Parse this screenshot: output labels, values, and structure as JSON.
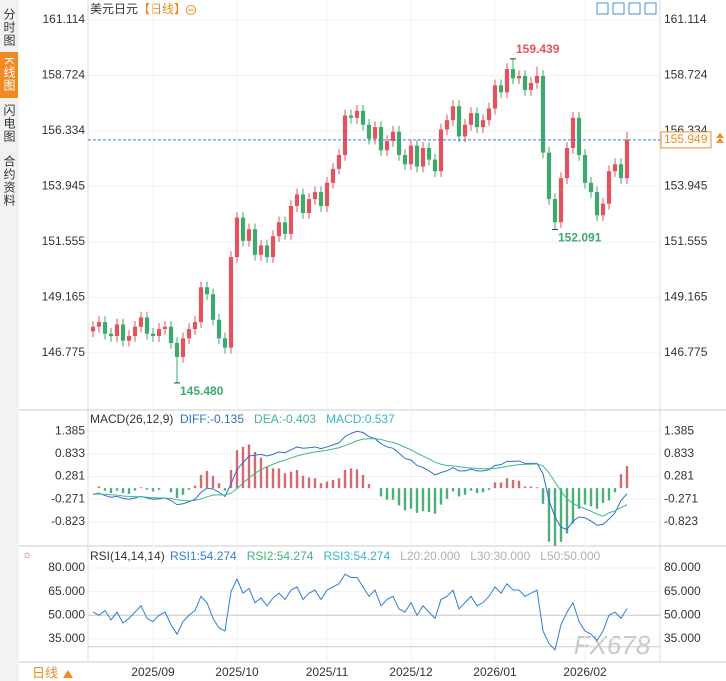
{
  "sidebar": [
    "分时图",
    "K线图",
    "闪电图",
    "合约资料"
  ],
  "footer": "日线",
  "watermark": "FX678",
  "chart_data": [
    {
      "type": "candlestick",
      "title": "美元日元",
      "subtitle": "【日线】",
      "up_color": "#e2535f",
      "down_color": "#3daa6d",
      "ylim": [
        144.4,
        161.63
      ],
      "yticks": [
        161.114,
        158.724,
        156.334,
        153.945,
        151.555,
        149.165,
        146.775
      ],
      "grid": true,
      "last_price": 155.949,
      "annotations": [
        {
          "value": 159.439,
          "side": "high"
        },
        {
          "value": 152.091,
          "side": "low"
        },
        {
          "value": 145.48,
          "label": "145.480",
          "side": "low"
        }
      ],
      "candles": [
        [
          147.7,
          148.15,
          147.45,
          147.9
        ],
        [
          147.9,
          148.35,
          147.65,
          148.1
        ],
        [
          148.1,
          148.35,
          147.35,
          147.6
        ],
        [
          147.6,
          147.85,
          147.25,
          147.5
        ],
        [
          147.5,
          148.25,
          147.25,
          148.0
        ],
        [
          148.0,
          148.25,
          147.05,
          147.3
        ],
        [
          147.3,
          147.75,
          147.05,
          147.5
        ],
        [
          147.5,
          148.15,
          147.25,
          147.9
        ],
        [
          147.9,
          148.55,
          147.65,
          148.3
        ],
        [
          148.3,
          148.55,
          147.35,
          147.6
        ],
        [
          147.6,
          147.85,
          147.25,
          147.5
        ],
        [
          147.5,
          148.05,
          147.25,
          147.8
        ],
        [
          147.8,
          148.15,
          147.55,
          147.9
        ],
        [
          147.9,
          148.15,
          146.95,
          147.2
        ],
        [
          147.2,
          147.45,
          145.48,
          146.6
        ],
        [
          146.6,
          147.65,
          146.35,
          147.4
        ],
        [
          147.4,
          148.05,
          147.15,
          147.8
        ],
        [
          147.8,
          148.35,
          147.55,
          148.1
        ],
        [
          148.1,
          149.85,
          147.85,
          149.6
        ],
        [
          149.6,
          149.85,
          149.05,
          149.3
        ],
        [
          149.3,
          149.55,
          147.95,
          148.2
        ],
        [
          148.2,
          148.45,
          147.15,
          147.4
        ],
        [
          147.4,
          147.65,
          146.75,
          147.0
        ],
        [
          147.0,
          151.15,
          146.75,
          150.9
        ],
        [
          150.9,
          152.85,
          150.65,
          152.6
        ],
        [
          152.6,
          152.85,
          151.35,
          151.6
        ],
        [
          151.6,
          152.35,
          151.35,
          152.1
        ],
        [
          152.1,
          152.35,
          150.75,
          151.0
        ],
        [
          151.0,
          151.65,
          150.75,
          151.4
        ],
        [
          151.4,
          151.65,
          150.65,
          150.9
        ],
        [
          150.9,
          152.05,
          150.65,
          151.8
        ],
        [
          151.8,
          152.65,
          151.55,
          152.4
        ],
        [
          152.4,
          152.65,
          151.65,
          151.9
        ],
        [
          151.9,
          153.35,
          151.65,
          153.1
        ],
        [
          153.1,
          153.85,
          152.85,
          153.6
        ],
        [
          153.6,
          153.85,
          152.55,
          152.8
        ],
        [
          152.8,
          153.65,
          152.55,
          153.4
        ],
        [
          153.4,
          153.95,
          153.15,
          153.7
        ],
        [
          153.7,
          153.95,
          152.85,
          153.1
        ],
        [
          153.1,
          154.35,
          152.85,
          154.1
        ],
        [
          154.1,
          154.95,
          153.85,
          154.7
        ],
        [
          154.7,
          155.55,
          154.45,
          155.3
        ],
        [
          155.3,
          157.25,
          155.05,
          157.0
        ],
        [
          157.0,
          157.25,
          156.65,
          156.9
        ],
        [
          156.9,
          157.45,
          156.65,
          157.2
        ],
        [
          157.2,
          157.45,
          156.35,
          156.6
        ],
        [
          156.6,
          156.85,
          155.75,
          156.0
        ],
        [
          156.0,
          156.75,
          155.75,
          156.5
        ],
        [
          156.5,
          156.75,
          155.25,
          155.5
        ],
        [
          155.5,
          156.15,
          155.25,
          155.9
        ],
        [
          155.9,
          156.55,
          155.65,
          156.3
        ],
        [
          156.3,
          156.55,
          155.05,
          155.3
        ],
        [
          155.3,
          155.55,
          154.65,
          154.9
        ],
        [
          154.9,
          155.95,
          154.65,
          155.7
        ],
        [
          155.7,
          155.95,
          154.55,
          154.8
        ],
        [
          154.8,
          155.85,
          154.55,
          155.6
        ],
        [
          155.6,
          155.85,
          154.85,
          155.1
        ],
        [
          155.1,
          155.35,
          154.35,
          154.6
        ],
        [
          154.6,
          156.65,
          154.35,
          156.4
        ],
        [
          156.4,
          157.05,
          156.15,
          156.8
        ],
        [
          156.8,
          157.65,
          156.55,
          157.4
        ],
        [
          157.4,
          157.65,
          155.85,
          156.1
        ],
        [
          156.1,
          156.85,
          155.85,
          156.6
        ],
        [
          156.6,
          157.35,
          156.35,
          157.1
        ],
        [
          157.1,
          157.35,
          156.25,
          156.5
        ],
        [
          156.5,
          157.05,
          156.25,
          156.8
        ],
        [
          156.8,
          157.55,
          156.55,
          157.3
        ],
        [
          157.3,
          158.55,
          157.05,
          158.3
        ],
        [
          158.3,
          158.55,
          157.75,
          158.0
        ],
        [
          158.0,
          159.25,
          157.75,
          159.0
        ],
        [
          159.0,
          159.439,
          158.35,
          158.6
        ],
        [
          158.6,
          158.95,
          158.35,
          158.7
        ],
        [
          158.7,
          158.95,
          157.85,
          158.1
        ],
        [
          158.1,
          158.65,
          157.85,
          158.4
        ],
        [
          158.4,
          159.1,
          158.15,
          158.7
        ],
        [
          158.7,
          158.95,
          155.15,
          155.4
        ],
        [
          155.4,
          155.65,
          153.15,
          153.4
        ],
        [
          153.4,
          153.65,
          152.091,
          152.4
        ],
        [
          152.4,
          154.55,
          152.15,
          154.3
        ],
        [
          154.3,
          155.85,
          154.05,
          155.6
        ],
        [
          155.6,
          157.15,
          155.35,
          156.9
        ],
        [
          156.9,
          157.15,
          155.05,
          155.3
        ],
        [
          155.3,
          155.55,
          153.85,
          154.1
        ],
        [
          154.1,
          154.35,
          153.45,
          153.7
        ],
        [
          153.7,
          153.95,
          152.45,
          152.7
        ],
        [
          152.7,
          153.45,
          152.45,
          153.2
        ],
        [
          153.2,
          154.85,
          152.95,
          154.6
        ],
        [
          154.6,
          155.15,
          154.35,
          154.9
        ],
        [
          154.9,
          155.15,
          154.05,
          154.3
        ],
        [
          154.3,
          156.3,
          154.05,
          155.949
        ]
      ]
    },
    {
      "type": "macd",
      "title": "MACD(26,12,9)",
      "ylim": [
        -1.38,
        1.46
      ],
      "yticks": [
        1.385,
        0.833,
        0.281,
        -0.271,
        -0.823
      ],
      "series": [
        {
          "name": "DIFF:-0.135",
          "color": "#2f6fd0",
          "values": [
            -0.15,
            -0.12,
            -0.18,
            -0.22,
            -0.2,
            -0.25,
            -0.27,
            -0.24,
            -0.2,
            -0.24,
            -0.27,
            -0.26,
            -0.24,
            -0.3,
            -0.4,
            -0.38,
            -0.33,
            -0.27,
            -0.1,
            0.0,
            -0.02,
            -0.1,
            -0.2,
            0.1,
            0.45,
            0.62,
            0.78,
            0.8,
            0.82,
            0.78,
            0.82,
            0.88,
            0.86,
            0.93,
            1.0,
            0.97,
            0.98,
            1.0,
            0.96,
            1.0,
            1.05,
            1.1,
            1.25,
            1.33,
            1.38,
            1.35,
            1.25,
            1.2,
            1.08,
            1.0,
            0.97,
            0.85,
            0.72,
            0.68,
            0.55,
            0.5,
            0.42,
            0.32,
            0.38,
            0.42,
            0.5,
            0.42,
            0.42,
            0.46,
            0.42,
            0.42,
            0.45,
            0.55,
            0.57,
            0.65,
            0.65,
            0.66,
            0.6,
            0.6,
            0.6,
            0.35,
            -0.3,
            -0.7,
            -0.95,
            -1.0,
            -0.8,
            -0.7,
            -0.72,
            -0.8,
            -0.9,
            -0.88,
            -0.75,
            -0.6,
            -0.3,
            -0.135
          ]
        },
        {
          "name": "DEA:-0.403",
          "color": "#3fb88a",
          "values": [
            -0.15,
            -0.14,
            -0.15,
            -0.16,
            -0.17,
            -0.19,
            -0.2,
            -0.21,
            -0.21,
            -0.22,
            -0.23,
            -0.24,
            -0.24,
            -0.25,
            -0.28,
            -0.3,
            -0.31,
            -0.3,
            -0.26,
            -0.21,
            -0.17,
            -0.16,
            -0.17,
            -0.12,
            -0.01,
            0.12,
            0.25,
            0.36,
            0.45,
            0.52,
            0.58,
            0.64,
            0.68,
            0.73,
            0.78,
            0.82,
            0.85,
            0.88,
            0.9,
            0.92,
            0.95,
            0.98,
            1.03,
            1.09,
            1.15,
            1.19,
            1.2,
            1.2,
            1.18,
            1.14,
            1.11,
            1.06,
            0.99,
            0.93,
            0.85,
            0.78,
            0.71,
            0.63,
            0.58,
            0.55,
            0.54,
            0.52,
            0.5,
            0.49,
            0.48,
            0.47,
            0.47,
            0.48,
            0.5,
            0.53,
            0.55,
            0.57,
            0.58,
            0.58,
            0.59,
            0.54,
            0.37,
            0.15,
            -0.07,
            -0.26,
            -0.37,
            -0.44,
            -0.5,
            -0.56,
            -0.63,
            -0.68,
            -0.6,
            -0.55,
            -0.47,
            -0.403
          ]
        }
      ],
      "histogram": {
        "name": "MACD:0.537",
        "color": "#38b5c8",
        "up_color": "#d46a74",
        "down_color": "#4cae7a",
        "values": [
          0,
          0.04,
          -0.06,
          -0.12,
          -0.06,
          -0.12,
          -0.14,
          -0.06,
          0.02,
          -0.04,
          -0.08,
          -0.04,
          0,
          -0.1,
          -0.24,
          -0.16,
          -0.04,
          0.06,
          0.32,
          0.42,
          0.3,
          0.12,
          -0.06,
          0.44,
          0.92,
          1.0,
          1.06,
          0.88,
          0.74,
          0.52,
          0.48,
          0.48,
          0.36,
          0.4,
          0.44,
          0.3,
          0.26,
          0.24,
          0.12,
          0.16,
          0.2,
          0.24,
          0.44,
          0.48,
          0.46,
          0.32,
          0.1,
          0,
          -0.2,
          -0.28,
          -0.28,
          -0.42,
          -0.54,
          -0.5,
          -0.6,
          -0.56,
          -0.58,
          -0.62,
          -0.4,
          -0.26,
          -0.08,
          -0.2,
          -0.16,
          -0.06,
          -0.12,
          -0.1,
          -0.04,
          0.14,
          0.14,
          0.24,
          0.2,
          0.18,
          0.04,
          0.04,
          0.02,
          -0.38,
          -1.3,
          -1.4,
          -1.3,
          -1.1,
          -0.86,
          -0.5,
          -0.4,
          -0.44,
          -0.5,
          -0.36,
          -0.3,
          -0.1,
          0.34,
          0.537
        ]
      }
    },
    {
      "type": "rsi",
      "title": "RSI(14,14,14)",
      "ylim": [
        21.6,
        83.8
      ],
      "yticks": [
        {
          "value": 80,
          "label": "80.000"
        },
        {
          "value": 65,
          "label": "65.000"
        },
        {
          "value": 50,
          "label": "50.000"
        },
        {
          "value": 35,
          "label": "35.000"
        }
      ],
      "levels": [
        20,
        30,
        50
      ],
      "series": [
        {
          "name": "RSI1:54.274",
          "color": "#2f7fd8",
          "values": [
            52,
            50,
            53,
            47,
            52,
            45,
            48,
            52,
            56,
            48,
            46,
            50,
            52,
            44,
            38,
            46,
            50,
            53,
            62,
            58,
            48,
            42,
            40,
            65,
            73,
            64,
            67,
            58,
            61,
            56,
            61,
            64,
            60,
            66,
            68,
            60,
            64,
            66,
            60,
            66,
            68,
            70,
            76,
            74,
            74,
            68,
            62,
            66,
            56,
            60,
            62,
            54,
            52,
            58,
            50,
            56,
            52,
            48,
            60,
            62,
            66,
            54,
            58,
            62,
            56,
            58,
            62,
            68,
            64,
            70,
            66,
            66,
            62,
            64,
            66,
            40,
            32,
            28,
            44,
            52,
            58,
            46,
            40,
            38,
            34,
            40,
            50,
            52,
            48,
            54.274
          ]
        }
      ],
      "legend": [
        {
          "name": "RSI2:54.274",
          "color": "#3db37a"
        },
        {
          "name": "RSI3:54.274",
          "color": "#35b5c5"
        },
        {
          "name": "L20:20.000",
          "color": "#b0b0b0"
        },
        {
          "name": "L30:30.000",
          "color": "#b0b0b0"
        },
        {
          "name": "L50:50.000",
          "color": "#b0b0b0"
        }
      ],
      "categories": [
        null,
        null,
        null,
        null,
        null,
        null,
        null,
        null,
        null,
        null,
        "2025/09",
        null,
        null,
        null,
        null,
        null,
        null,
        null,
        null,
        null,
        null,
        null,
        null,
        null,
        "2025/10",
        null,
        null,
        null,
        null,
        null,
        null,
        null,
        null,
        null,
        null,
        null,
        null,
        null,
        null,
        "2025/11",
        null,
        null,
        null,
        null,
        null,
        null,
        null,
        null,
        null,
        null,
        null,
        null,
        null,
        "2025/12",
        null,
        null,
        null,
        null,
        null,
        null,
        null,
        null,
        null,
        null,
        null,
        null,
        null,
        "2026/01",
        null,
        null,
        null,
        null,
        null,
        null,
        null,
        null,
        null,
        null,
        null,
        null,
        null,
        null,
        "2026/02",
        null,
        null,
        null,
        null,
        null,
        null,
        null
      ]
    }
  ]
}
